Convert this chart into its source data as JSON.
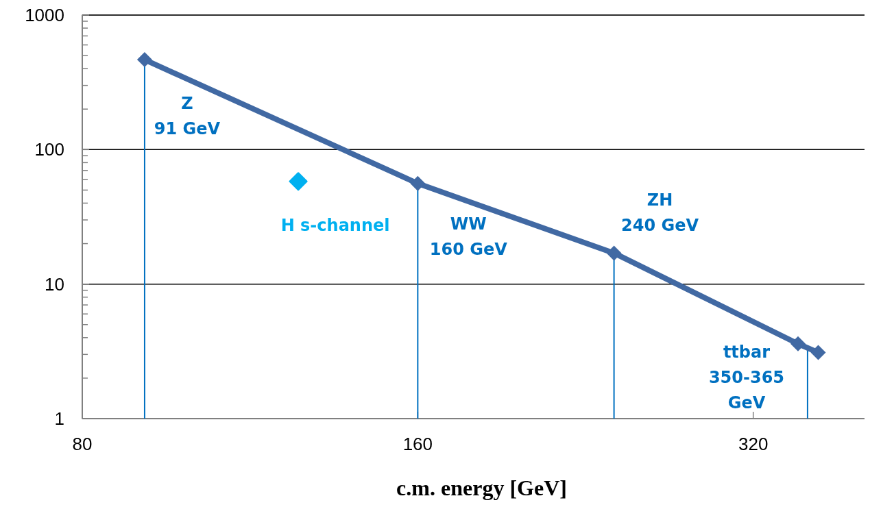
{
  "chart_data": {
    "type": "line",
    "xlabel": "c.m. energy [GeV]",
    "log": "xy",
    "xlim": [
      80,
      405
    ],
    "xticks": [
      80,
      160,
      320
    ],
    "ylim": [
      1,
      1000
    ],
    "yticks": [
      1,
      10,
      100,
      1000
    ],
    "grid": "y",
    "series": [
      {
        "color": "#4169a3",
        "x": [
          91,
          160,
          240,
          351,
          366
        ],
        "values": [
          466,
          56,
          17,
          3.6,
          3.1
        ],
        "marker": "diamond"
      },
      {
        "type": "scatter",
        "color": "#00b0f0",
        "x": [
          125
        ],
        "values": [
          58
        ],
        "marker": "diamond"
      }
    ],
    "ref_lines": [
      {
        "axis": "x",
        "value": 91,
        "color": "#0070c0"
      },
      {
        "axis": "x",
        "value": 160,
        "color": "#0070c0"
      },
      {
        "axis": "x",
        "value": 240,
        "color": "#0070c0"
      },
      {
        "axis": "x",
        "value": 358,
        "color": "#0070c0"
      }
    ],
    "annotations": [
      {
        "text": "Z\n91 GeV",
        "x": 91,
        "y": 466
      },
      {
        "text": "H s-channel",
        "x": 125,
        "y": 58
      },
      {
        "text": "WW\n160 GeV",
        "x": 160,
        "y": 56
      },
      {
        "text": "ZH\n240 GeV",
        "x": 240,
        "y": 17
      },
      {
        "text": "ttbar\n350-365\nGeV",
        "x": 351,
        "y": 3.6
      }
    ]
  }
}
